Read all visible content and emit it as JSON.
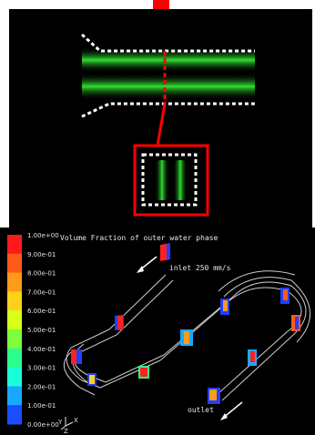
{
  "top_panel": {
    "description_shapes": [
      "flow-channel-green",
      "dotted-boundary",
      "zoom-box-red"
    ]
  },
  "bottom_panel": {
    "title": "Volume Fraction of outer water phase",
    "inlet_label": "inlet  250 mm/s",
    "outlet_label": "outlet",
    "axis_labels": {
      "y": "Y",
      "z": "Z",
      "x": "X"
    }
  },
  "legend": {
    "ticks": [
      "1.00e+00",
      "9.00e-01",
      "8.00e-01",
      "7.00e-01",
      "6.00e-01",
      "5.00e-01",
      "4.00e-01",
      "3.00e-01",
      "2.00e-01",
      "1.00e-01",
      "0.00e+00"
    ],
    "colors": [
      "#ff1a1a",
      "#ff5a1a",
      "#ff9a1a",
      "#ffd21a",
      "#d6ff1a",
      "#7dff3a",
      "#2aff8a",
      "#1affd8",
      "#1aa8ff",
      "#1a4dff"
    ]
  },
  "colors": {
    "highlight_red": "#ff0000",
    "flow_green": "#22dd22",
    "background": "#000000",
    "line_gray": "#cfcfcf"
  }
}
